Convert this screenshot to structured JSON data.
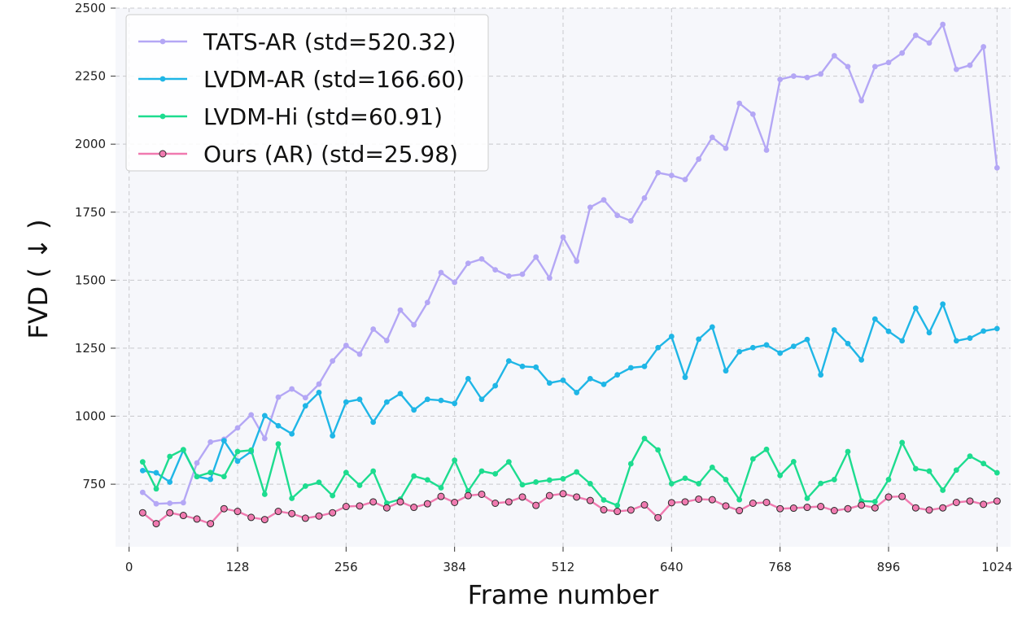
{
  "chart_data": {
    "type": "line",
    "xlabel": "Frame number",
    "ylabel": "FVD ( ↓ )",
    "xlim": [
      -16,
      1040
    ],
    "ylim": [
      520,
      2500
    ],
    "xticks": [
      0,
      128,
      256,
      384,
      512,
      640,
      768,
      896,
      1024
    ],
    "yticks": [
      750,
      1000,
      1250,
      1500,
      1750,
      2000,
      2250,
      2500
    ],
    "grid": true,
    "legend_position": "top-left",
    "x": [
      16,
      32,
      48,
      64,
      80,
      96,
      112,
      128,
      144,
      160,
      176,
      192,
      208,
      224,
      240,
      256,
      272,
      288,
      304,
      320,
      336,
      352,
      368,
      384,
      400,
      416,
      432,
      448,
      464,
      480,
      496,
      512,
      528,
      544,
      560,
      576,
      592,
      608,
      624,
      640,
      656,
      672,
      688,
      704,
      720,
      736,
      752,
      768,
      784,
      800,
      816,
      832,
      848,
      864,
      880,
      896,
      912,
      928,
      944,
      960,
      976,
      992,
      1008,
      1024
    ],
    "series": [
      {
        "name": "TATS-AR (std=520.32)",
        "color": "#b4a7f5",
        "marker_style": "dot",
        "values": [
          720,
          678,
          680,
          682,
          828,
          905,
          915,
          957,
          1005,
          918,
          1070,
          1100,
          1068,
          1118,
          1203,
          1260,
          1228,
          1320,
          1278,
          1390,
          1336,
          1418,
          1528,
          1492,
          1562,
          1578,
          1538,
          1515,
          1522,
          1585,
          1508,
          1658,
          1570,
          1768,
          1795,
          1738,
          1718,
          1802,
          1895,
          1885,
          1870,
          1945,
          2025,
          1985,
          2150,
          2110,
          1978,
          2238,
          2250,
          2245,
          2258,
          2325,
          2285,
          2160,
          2285,
          2300,
          2335,
          2400,
          2372,
          2440,
          2275,
          2290,
          2358,
          1913
        ]
      },
      {
        "name": "LVDM-AR (std=166.60)",
        "color": "#1fb6e6",
        "marker_style": "dot",
        "values": [
          800,
          792,
          758,
          875,
          778,
          768,
          910,
          835,
          870,
          1002,
          965,
          935,
          1038,
          1087,
          928,
          1052,
          1062,
          978,
          1052,
          1083,
          1023,
          1062,
          1058,
          1047,
          1138,
          1062,
          1112,
          1203,
          1183,
          1180,
          1122,
          1132,
          1087,
          1138,
          1117,
          1152,
          1178,
          1183,
          1252,
          1293,
          1143,
          1283,
          1328,
          1167,
          1237,
          1252,
          1262,
          1232,
          1257,
          1282,
          1152,
          1317,
          1267,
          1207,
          1357,
          1312,
          1277,
          1397,
          1307,
          1412,
          1277,
          1287,
          1313,
          1322
        ]
      },
      {
        "name": "LVDM-Hi (std=60.91)",
        "color": "#1ddc8f",
        "marker_style": "dot",
        "values": [
          832,
          733,
          852,
          877,
          778,
          793,
          778,
          870,
          875,
          713,
          898,
          698,
          743,
          757,
          708,
          793,
          746,
          798,
          680,
          695,
          780,
          766,
          737,
          838,
          725,
          798,
          788,
          832,
          748,
          758,
          765,
          770,
          795,
          752,
          692,
          672,
          825,
          918,
          876,
          752,
          772,
          752,
          812,
          767,
          693,
          843,
          878,
          782,
          833,
          698,
          753,
          767,
          870,
          688,
          686,
          767,
          903,
          807,
          798,
          728,
          802,
          853,
          826,
          792
        ]
      },
      {
        "name": "Ours (AR) (std=25.98)",
        "color": "#f07ab0",
        "marker_style": "dot-outlined",
        "values": [
          645,
          605,
          645,
          635,
          622,
          605,
          660,
          650,
          628,
          620,
          650,
          642,
          625,
          633,
          645,
          668,
          670,
          685,
          663,
          685,
          665,
          678,
          705,
          683,
          708,
          713,
          680,
          685,
          703,
          672,
          708,
          715,
          703,
          690,
          656,
          650,
          655,
          674,
          627,
          682,
          685,
          695,
          693,
          670,
          653,
          680,
          683,
          660,
          662,
          665,
          668,
          653,
          660,
          673,
          663,
          703,
          705,
          663,
          655,
          663,
          683,
          688,
          676,
          688
        ]
      }
    ]
  }
}
